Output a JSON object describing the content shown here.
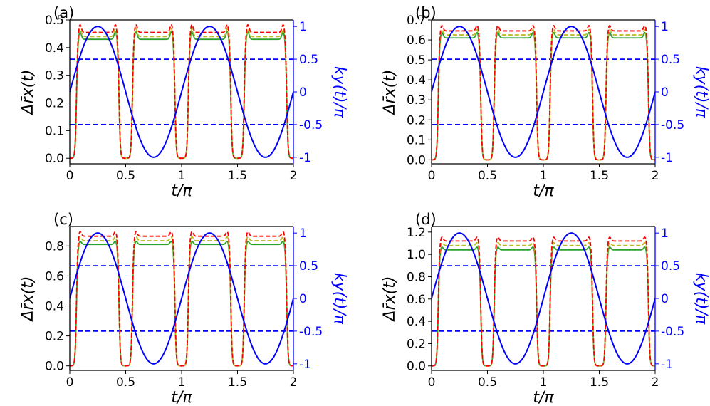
{
  "chart_data": [
    {
      "type": "line",
      "panel_label": "(a)",
      "xlabel": "t/π",
      "ylabel": "Δr̄x(t)",
      "ylabel_right": "ky(t)/π",
      "xlim": [
        0,
        2
      ],
      "ylim": [
        -0.02,
        0.5
      ],
      "xticks": [
        "0",
        "0.5",
        "1",
        "1.5",
        "2"
      ],
      "yticks": [
        0.0,
        0.1,
        0.2,
        0.3,
        0.4,
        0.5
      ],
      "ytick_labels": [
        "0.0",
        "0.1",
        "0.2",
        "0.3",
        "0.4",
        "0.5"
      ],
      "ylim_right": [
        -1.1,
        1.1
      ],
      "yticks_right": [
        1,
        0.5,
        0,
        -0.5,
        -1
      ],
      "ytick_labels_right": [
        "1",
        "0.5",
        "0",
        "-0.5",
        "-1"
      ],
      "plateau_windows": [
        [
          0.06,
          0.44
        ],
        [
          0.56,
          0.94
        ],
        [
          1.06,
          1.44
        ],
        [
          1.56,
          1.94
        ]
      ],
      "series": [
        {
          "name": "green solid",
          "color": "#2ca02c",
          "style": "solid",
          "plateau": 0.43,
          "edge_peak": 0.46
        },
        {
          "name": "yellow dashed",
          "color": "#bcbd22",
          "style": "dashed",
          "plateau": 0.44,
          "edge_peak": 0.47
        },
        {
          "name": "red dashed",
          "color": "#ff0000",
          "style": "dashed",
          "plateau": 0.455,
          "edge_peak": 0.485
        }
      ],
      "ky_curve": {
        "name": "ky(t)/π",
        "color": "#0000ff",
        "function": "sin(2t)",
        "amplitude": 1
      },
      "reference_lines": [
        0.5,
        -0.5
      ]
    },
    {
      "type": "line",
      "panel_label": "(b)",
      "xlabel": "t/π",
      "ylabel": "Δr̄x(t)",
      "ylabel_right": "ky(t)/π",
      "xlim": [
        0,
        2
      ],
      "ylim": [
        -0.02,
        0.7
      ],
      "xticks": [
        "0",
        "0.5",
        "1",
        "1.5",
        "2"
      ],
      "yticks": [
        0.0,
        0.1,
        0.2,
        0.3,
        0.4,
        0.5,
        0.6,
        0.7
      ],
      "ytick_labels": [
        "0.0",
        "0.1",
        "0.2",
        "0.3",
        "0.4",
        "0.5",
        "0.6",
        "0.7"
      ],
      "ylim_right": [
        -1.1,
        1.1
      ],
      "yticks_right": [
        1,
        0.5,
        0,
        -0.5,
        -1
      ],
      "ytick_labels_right": [
        "1",
        "0.5",
        "0",
        "-0.5",
        "-1"
      ],
      "plateau_windows": [
        [
          0.06,
          0.44
        ],
        [
          0.56,
          0.94
        ],
        [
          1.06,
          1.44
        ],
        [
          1.56,
          1.94
        ]
      ],
      "series": [
        {
          "name": "green solid",
          "color": "#2ca02c",
          "style": "solid",
          "plateau": 0.61,
          "edge_peak": 0.64
        },
        {
          "name": "yellow dashed",
          "color": "#bcbd22",
          "style": "dashed",
          "plateau": 0.625,
          "edge_peak": 0.655
        },
        {
          "name": "red dashed",
          "color": "#ff0000",
          "style": "dashed",
          "plateau": 0.645,
          "edge_peak": 0.675
        }
      ],
      "ky_curve": {
        "name": "ky(t)/π",
        "color": "#0000ff",
        "function": "sin(2t)",
        "amplitude": 1
      },
      "reference_lines": [
        0.5,
        -0.5
      ]
    },
    {
      "type": "line",
      "panel_label": "(c)",
      "xlabel": "t/π",
      "ylabel": "Δr̄x(t)",
      "ylabel_right": "ky(t)/π",
      "xlim": [
        0,
        2
      ],
      "ylim": [
        -0.03,
        0.93
      ],
      "xticks": [
        "0",
        "0.5",
        "1",
        "1.5",
        "2"
      ],
      "yticks": [
        0.0,
        0.2,
        0.4,
        0.6,
        0.8
      ],
      "ytick_labels": [
        "0.0",
        "0.2",
        "0.4",
        "0.6",
        "0.8"
      ],
      "ylim_right": [
        -1.1,
        1.1
      ],
      "yticks_right": [
        1,
        0.5,
        0,
        -0.5,
        -1
      ],
      "ytick_labels_right": [
        "1",
        "0.5",
        "0",
        "-0.5",
        "-1"
      ],
      "plateau_windows": [
        [
          0.06,
          0.44
        ],
        [
          0.56,
          0.94
        ],
        [
          1.06,
          1.44
        ],
        [
          1.56,
          1.94
        ]
      ],
      "series": [
        {
          "name": "green solid",
          "color": "#2ca02c",
          "style": "solid",
          "plateau": 0.81,
          "edge_peak": 0.835
        },
        {
          "name": "yellow dashed",
          "color": "#bcbd22",
          "style": "dashed",
          "plateau": 0.835,
          "edge_peak": 0.865
        },
        {
          "name": "red dashed",
          "color": "#ff0000",
          "style": "dashed",
          "plateau": 0.865,
          "edge_peak": 0.9
        }
      ],
      "ky_curve": {
        "name": "ky(t)/π",
        "color": "#0000ff",
        "function": "sin(2t)",
        "amplitude": 1
      },
      "reference_lines": [
        0.5,
        -0.5
      ]
    },
    {
      "type": "line",
      "panel_label": "(d)",
      "xlabel": "t/π",
      "ylabel": "Δr̄x(t)",
      "ylabel_right": "ky(t)/π",
      "xlim": [
        0,
        2
      ],
      "ylim": [
        -0.04,
        1.25
      ],
      "xticks": [
        "0",
        "0.5",
        "1",
        "1.5",
        "2"
      ],
      "yticks": [
        0.0,
        0.2,
        0.4,
        0.6,
        0.8,
        1.0,
        1.2
      ],
      "ytick_labels": [
        "0.0",
        "0.2",
        "0.4",
        "0.6",
        "0.8",
        "1.0",
        "1.2"
      ],
      "ylim_right": [
        -1.1,
        1.1
      ],
      "yticks_right": [
        1,
        0.5,
        0,
        -0.5,
        -1
      ],
      "ytick_labels_right": [
        "1",
        "0.5",
        "0",
        "-0.5",
        "-1"
      ],
      "plateau_windows": [
        [
          0.06,
          0.44
        ],
        [
          0.56,
          0.94
        ],
        [
          1.06,
          1.44
        ],
        [
          1.56,
          1.94
        ]
      ],
      "series": [
        {
          "name": "green solid",
          "color": "#2ca02c",
          "style": "solid",
          "plateau": 1.04,
          "edge_peak": 1.07
        },
        {
          "name": "yellow dashed",
          "color": "#bcbd22",
          "style": "dashed",
          "plateau": 1.08,
          "edge_peak": 1.11
        },
        {
          "name": "red dashed",
          "color": "#ff0000",
          "style": "dashed",
          "plateau": 1.12,
          "edge_peak": 1.16
        }
      ],
      "ky_curve": {
        "name": "ky(t)/π",
        "color": "#0000ff",
        "function": "sin(2t)",
        "amplitude": 1
      },
      "reference_lines": [
        0.5,
        -0.5
      ]
    }
  ]
}
